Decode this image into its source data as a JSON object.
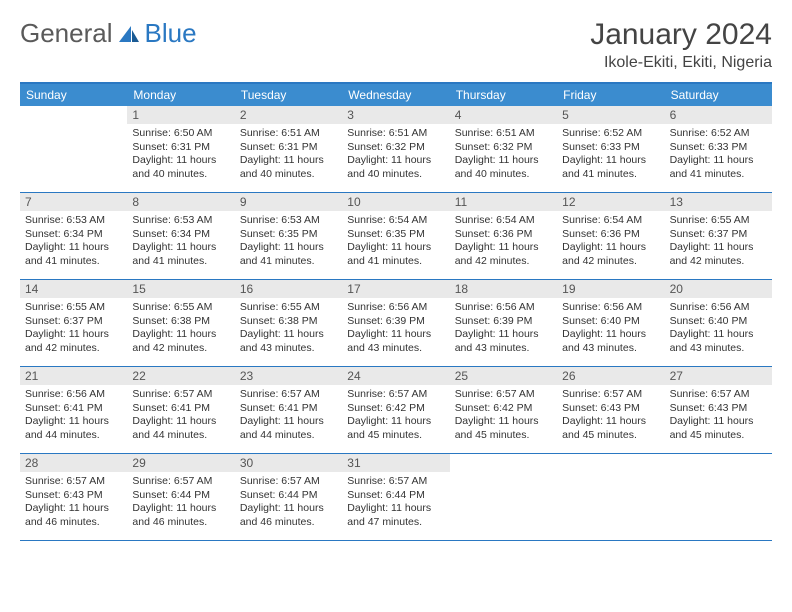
{
  "logo": {
    "text1": "General",
    "text2": "Blue"
  },
  "title": "January 2024",
  "location": "Ikole-Ekiti, Ekiti, Nigeria",
  "dow": [
    "Sunday",
    "Monday",
    "Tuesday",
    "Wednesday",
    "Thursday",
    "Friday",
    "Saturday"
  ],
  "colors": {
    "header_bg": "#3b8ccf",
    "border": "#2a78c2",
    "daynum_bg": "#e9e9e9"
  },
  "weeks": [
    [
      {
        "n": "",
        "sr": "",
        "ss": "",
        "dl": ""
      },
      {
        "n": "1",
        "sr": "Sunrise: 6:50 AM",
        "ss": "Sunset: 6:31 PM",
        "dl": "Daylight: 11 hours and 40 minutes."
      },
      {
        "n": "2",
        "sr": "Sunrise: 6:51 AM",
        "ss": "Sunset: 6:31 PM",
        "dl": "Daylight: 11 hours and 40 minutes."
      },
      {
        "n": "3",
        "sr": "Sunrise: 6:51 AM",
        "ss": "Sunset: 6:32 PM",
        "dl": "Daylight: 11 hours and 40 minutes."
      },
      {
        "n": "4",
        "sr": "Sunrise: 6:51 AM",
        "ss": "Sunset: 6:32 PM",
        "dl": "Daylight: 11 hours and 40 minutes."
      },
      {
        "n": "5",
        "sr": "Sunrise: 6:52 AM",
        "ss": "Sunset: 6:33 PM",
        "dl": "Daylight: 11 hours and 41 minutes."
      },
      {
        "n": "6",
        "sr": "Sunrise: 6:52 AM",
        "ss": "Sunset: 6:33 PM",
        "dl": "Daylight: 11 hours and 41 minutes."
      }
    ],
    [
      {
        "n": "7",
        "sr": "Sunrise: 6:53 AM",
        "ss": "Sunset: 6:34 PM",
        "dl": "Daylight: 11 hours and 41 minutes."
      },
      {
        "n": "8",
        "sr": "Sunrise: 6:53 AM",
        "ss": "Sunset: 6:34 PM",
        "dl": "Daylight: 11 hours and 41 minutes."
      },
      {
        "n": "9",
        "sr": "Sunrise: 6:53 AM",
        "ss": "Sunset: 6:35 PM",
        "dl": "Daylight: 11 hours and 41 minutes."
      },
      {
        "n": "10",
        "sr": "Sunrise: 6:54 AM",
        "ss": "Sunset: 6:35 PM",
        "dl": "Daylight: 11 hours and 41 minutes."
      },
      {
        "n": "11",
        "sr": "Sunrise: 6:54 AM",
        "ss": "Sunset: 6:36 PM",
        "dl": "Daylight: 11 hours and 42 minutes."
      },
      {
        "n": "12",
        "sr": "Sunrise: 6:54 AM",
        "ss": "Sunset: 6:36 PM",
        "dl": "Daylight: 11 hours and 42 minutes."
      },
      {
        "n": "13",
        "sr": "Sunrise: 6:55 AM",
        "ss": "Sunset: 6:37 PM",
        "dl": "Daylight: 11 hours and 42 minutes."
      }
    ],
    [
      {
        "n": "14",
        "sr": "Sunrise: 6:55 AM",
        "ss": "Sunset: 6:37 PM",
        "dl": "Daylight: 11 hours and 42 minutes."
      },
      {
        "n": "15",
        "sr": "Sunrise: 6:55 AM",
        "ss": "Sunset: 6:38 PM",
        "dl": "Daylight: 11 hours and 42 minutes."
      },
      {
        "n": "16",
        "sr": "Sunrise: 6:55 AM",
        "ss": "Sunset: 6:38 PM",
        "dl": "Daylight: 11 hours and 43 minutes."
      },
      {
        "n": "17",
        "sr": "Sunrise: 6:56 AM",
        "ss": "Sunset: 6:39 PM",
        "dl": "Daylight: 11 hours and 43 minutes."
      },
      {
        "n": "18",
        "sr": "Sunrise: 6:56 AM",
        "ss": "Sunset: 6:39 PM",
        "dl": "Daylight: 11 hours and 43 minutes."
      },
      {
        "n": "19",
        "sr": "Sunrise: 6:56 AM",
        "ss": "Sunset: 6:40 PM",
        "dl": "Daylight: 11 hours and 43 minutes."
      },
      {
        "n": "20",
        "sr": "Sunrise: 6:56 AM",
        "ss": "Sunset: 6:40 PM",
        "dl": "Daylight: 11 hours and 43 minutes."
      }
    ],
    [
      {
        "n": "21",
        "sr": "Sunrise: 6:56 AM",
        "ss": "Sunset: 6:41 PM",
        "dl": "Daylight: 11 hours and 44 minutes."
      },
      {
        "n": "22",
        "sr": "Sunrise: 6:57 AM",
        "ss": "Sunset: 6:41 PM",
        "dl": "Daylight: 11 hours and 44 minutes."
      },
      {
        "n": "23",
        "sr": "Sunrise: 6:57 AM",
        "ss": "Sunset: 6:41 PM",
        "dl": "Daylight: 11 hours and 44 minutes."
      },
      {
        "n": "24",
        "sr": "Sunrise: 6:57 AM",
        "ss": "Sunset: 6:42 PM",
        "dl": "Daylight: 11 hours and 45 minutes."
      },
      {
        "n": "25",
        "sr": "Sunrise: 6:57 AM",
        "ss": "Sunset: 6:42 PM",
        "dl": "Daylight: 11 hours and 45 minutes."
      },
      {
        "n": "26",
        "sr": "Sunrise: 6:57 AM",
        "ss": "Sunset: 6:43 PM",
        "dl": "Daylight: 11 hours and 45 minutes."
      },
      {
        "n": "27",
        "sr": "Sunrise: 6:57 AM",
        "ss": "Sunset: 6:43 PM",
        "dl": "Daylight: 11 hours and 45 minutes."
      }
    ],
    [
      {
        "n": "28",
        "sr": "Sunrise: 6:57 AM",
        "ss": "Sunset: 6:43 PM",
        "dl": "Daylight: 11 hours and 46 minutes."
      },
      {
        "n": "29",
        "sr": "Sunrise: 6:57 AM",
        "ss": "Sunset: 6:44 PM",
        "dl": "Daylight: 11 hours and 46 minutes."
      },
      {
        "n": "30",
        "sr": "Sunrise: 6:57 AM",
        "ss": "Sunset: 6:44 PM",
        "dl": "Daylight: 11 hours and 46 minutes."
      },
      {
        "n": "31",
        "sr": "Sunrise: 6:57 AM",
        "ss": "Sunset: 6:44 PM",
        "dl": "Daylight: 11 hours and 47 minutes."
      },
      {
        "n": "",
        "sr": "",
        "ss": "",
        "dl": ""
      },
      {
        "n": "",
        "sr": "",
        "ss": "",
        "dl": ""
      },
      {
        "n": "",
        "sr": "",
        "ss": "",
        "dl": ""
      }
    ]
  ]
}
